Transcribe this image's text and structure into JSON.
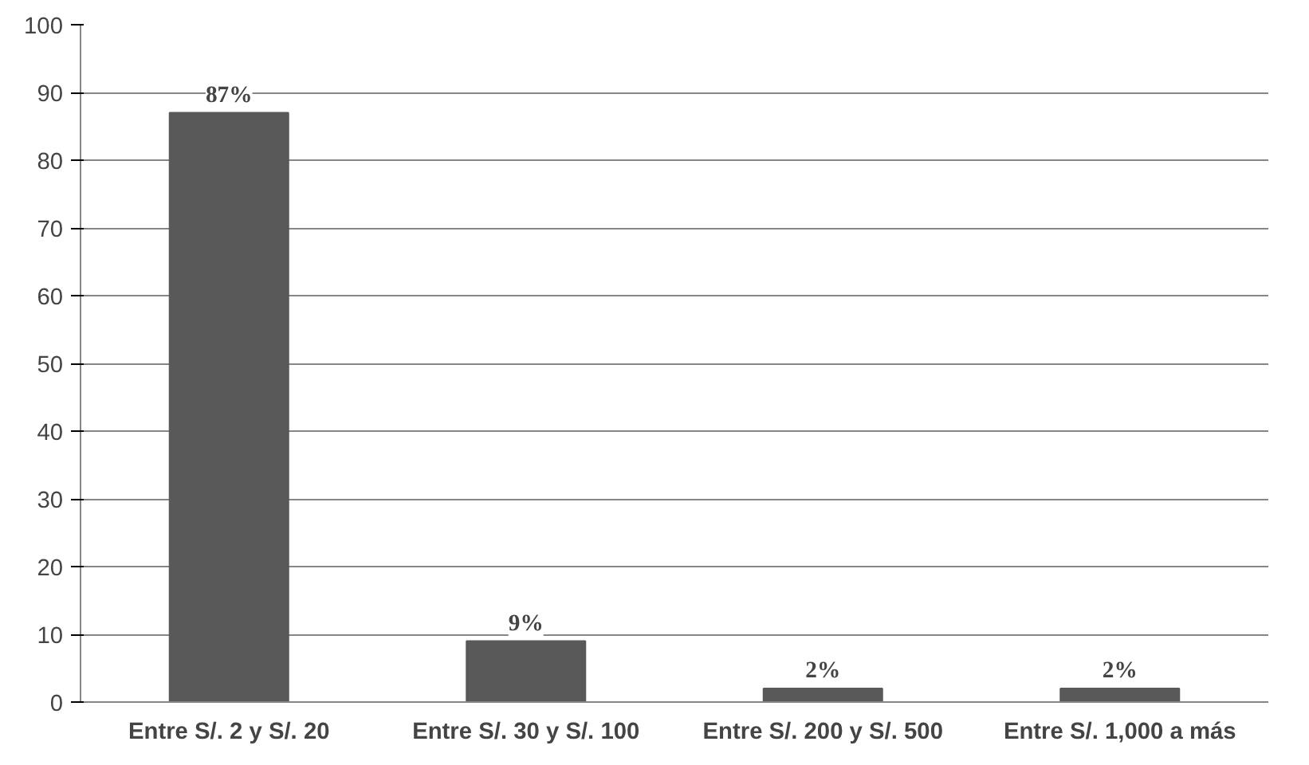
{
  "chart_data": {
    "type": "bar",
    "categories": [
      "Entre S/. 2 y S/. 20",
      "Entre S/. 30 y S/. 100",
      "Entre S/. 200 y S/. 500",
      "Entre S/. 1,000 a más"
    ],
    "values": [
      87,
      9,
      2,
      2
    ],
    "value_labels": [
      "87%",
      "9%",
      "2%",
      "2%"
    ],
    "color": "#595959",
    "ylim": [
      0,
      100
    ],
    "yticks": [
      0,
      10,
      20,
      30,
      40,
      50,
      60,
      70,
      80,
      90,
      100
    ],
    "grid": "y"
  }
}
